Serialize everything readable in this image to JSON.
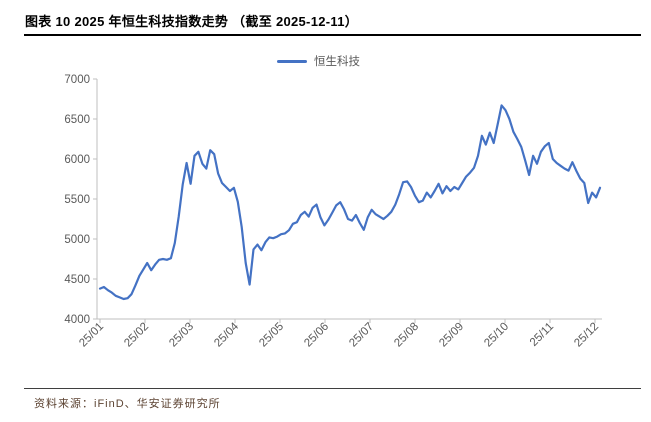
{
  "title": "图表 10 2025 年恒生科技指数走势 （截至 2025-12-11）",
  "legend": {
    "label": "恒生科技"
  },
  "footer": {
    "source_label": "资料来源：iFinD、华安证券研究所"
  },
  "colors": {
    "line": "#4472C4",
    "axis": "#BFBFBF",
    "tick_text": "#595959",
    "title_text": "#000000",
    "source_text": "#5C4332"
  },
  "chart_data": {
    "type": "line",
    "title": "2025 年恒生科技指数走势（截至 2025-12-11）",
    "xlabel": "",
    "ylabel": "",
    "ylim": [
      4000,
      7000
    ],
    "y_ticks": [
      7000,
      6500,
      6000,
      5500,
      5000,
      4500,
      4000
    ],
    "x_tick_labels": [
      "25/01",
      "25/02",
      "25/03",
      "25/04",
      "25/05",
      "25/06",
      "25/07",
      "25/08",
      "25/09",
      "25/10",
      "25/11",
      "25/12"
    ],
    "grid": false,
    "legend_position": "top-center",
    "series": [
      {
        "name": "恒生科技",
        "note": "index values sampled uniformly from 2025-01 through 2025-12-11",
        "values": [
          4380,
          4400,
          4360,
          4330,
          4290,
          4270,
          4250,
          4260,
          4310,
          4420,
          4540,
          4620,
          4700,
          4610,
          4680,
          4740,
          4750,
          4740,
          4760,
          4950,
          5280,
          5680,
          5950,
          5690,
          6040,
          6090,
          5940,
          5880,
          6110,
          6060,
          5820,
          5700,
          5650,
          5600,
          5640,
          5465,
          5150,
          4700,
          4430,
          4870,
          4930,
          4860,
          4960,
          5020,
          5010,
          5030,
          5060,
          5070,
          5110,
          5190,
          5210,
          5300,
          5340,
          5280,
          5390,
          5430,
          5270,
          5170,
          5240,
          5330,
          5420,
          5460,
          5370,
          5250,
          5230,
          5300,
          5200,
          5115,
          5270,
          5365,
          5310,
          5280,
          5250,
          5290,
          5340,
          5430,
          5560,
          5710,
          5720,
          5650,
          5540,
          5460,
          5480,
          5580,
          5520,
          5600,
          5690,
          5570,
          5660,
          5600,
          5650,
          5620,
          5700,
          5780,
          5830,
          5890,
          6040,
          6290,
          6180,
          6330,
          6200,
          6430,
          6670,
          6610,
          6500,
          6340,
          6250,
          6150,
          5980,
          5800,
          6040,
          5940,
          6090,
          6160,
          6200,
          6000,
          5950,
          5915,
          5880,
          5855,
          5960,
          5850,
          5755,
          5700,
          5450,
          5580,
          5520,
          5640
        ]
      }
    ]
  }
}
